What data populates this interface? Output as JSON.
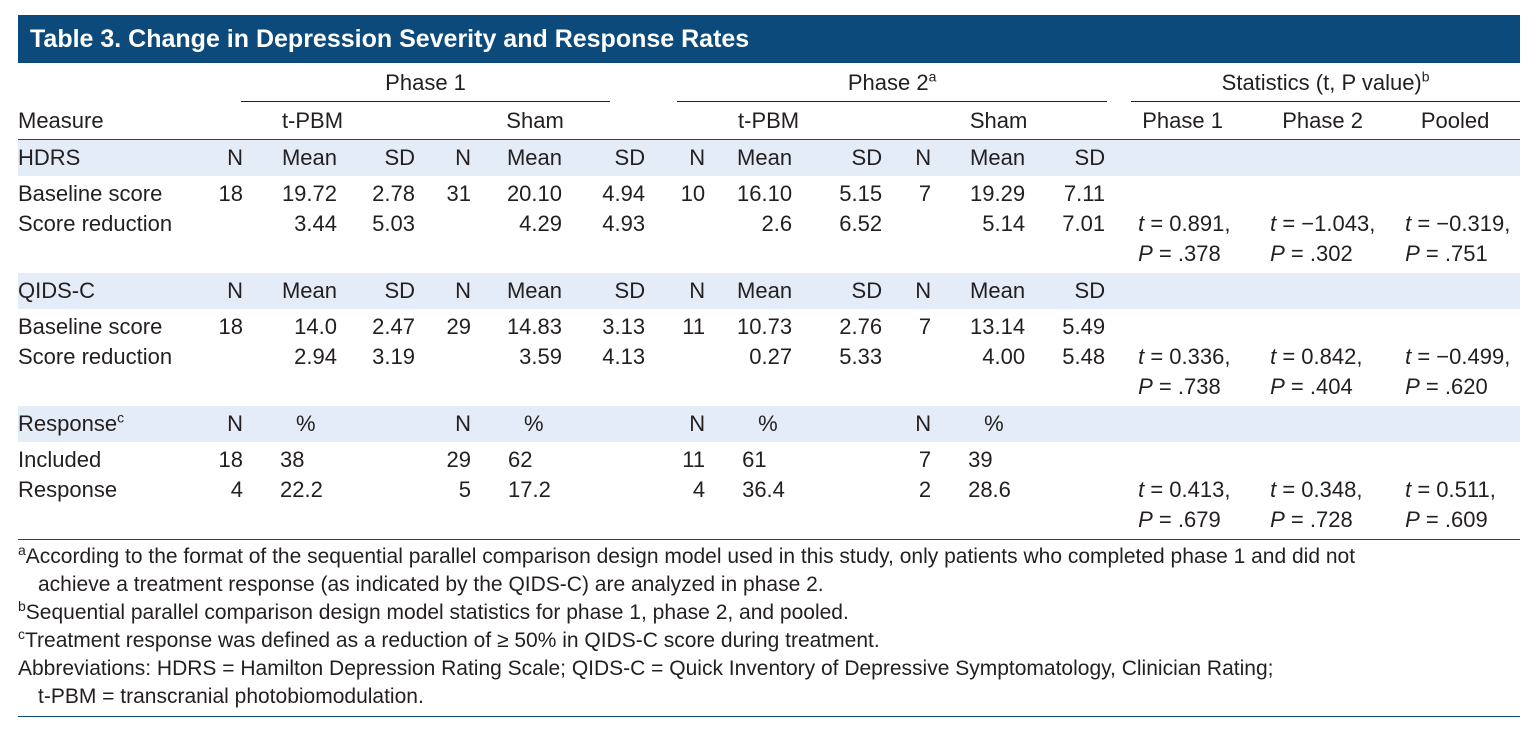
{
  "title": "Table 3. Change in Depression Severity and Response Rates",
  "header_groups": [
    {
      "label": "Phase 1"
    },
    {
      "label": "Phase 2",
      "note": "a"
    },
    {
      "label": "Statistics (t, P value)",
      "note": "b"
    }
  ],
  "column_heads": {
    "measure": "Measure",
    "groups": [
      "t-PBM",
      "Sham",
      "t-PBM",
      "Sham"
    ],
    "stats": [
      "Phase 1",
      "Phase 2",
      "Pooled"
    ]
  },
  "sections": [
    {
      "label": "HDRS",
      "subheads": [
        "N",
        "Mean",
        "SD",
        "N",
        "Mean",
        "SD",
        "N",
        "Mean",
        "SD",
        "N",
        "Mean",
        "SD"
      ],
      "rows": [
        {
          "label": "Baseline score",
          "cells": [
            "18",
            "19.72",
            "2.78",
            "31",
            "20.10",
            "4.94",
            "10",
            "16.10",
            "5.15",
            "7",
            "19.29",
            "7.11"
          ]
        },
        {
          "label": "Score reduction",
          "cells": [
            null,
            "3.44",
            "5.03",
            null,
            "4.29",
            "4.93",
            null,
            "2.6",
            "6.52",
            null,
            "5.14",
            "7.01"
          ],
          "stats": [
            [
              "t = 0.891,",
              "P = .378"
            ],
            [
              "t = −1.043,",
              "P = .302"
            ],
            [
              "t = −0.319,",
              "P = .751"
            ]
          ]
        }
      ]
    },
    {
      "label": "QIDS-C",
      "subheads": [
        "N",
        "Mean",
        "SD",
        "N",
        "Mean",
        "SD",
        "N",
        "Mean",
        "SD",
        "N",
        "Mean",
        "SD"
      ],
      "rows": [
        {
          "label": "Baseline score",
          "cells": [
            "18",
            "14.0",
            "2.47",
            "29",
            "14.83",
            "3.13",
            "11",
            "10.73",
            "2.76",
            "7",
            "13.14",
            "5.49"
          ]
        },
        {
          "label": "Score reduction",
          "cells": [
            null,
            "2.94",
            "3.19",
            null,
            "3.59",
            "4.13",
            null,
            "0.27",
            "5.33",
            null,
            "4.00",
            "5.48"
          ],
          "stats": [
            [
              "t = 0.336,",
              "P = .738"
            ],
            [
              "t = 0.842,",
              "P = .404"
            ],
            [
              "t = −0.499,",
              "P = .620"
            ]
          ]
        }
      ]
    },
    {
      "label": "Response",
      "note": "c",
      "subheads": [
        "N",
        "%",
        null,
        "N",
        "%",
        null,
        "N",
        "%",
        null,
        "N",
        "%",
        null
      ],
      "rows": [
        {
          "label": "Included",
          "cells": [
            "18",
            "38",
            null,
            "29",
            "62",
            null,
            "11",
            "61",
            null,
            "7",
            "39",
            null
          ]
        },
        {
          "label": "Response",
          "cells": [
            "4",
            "22.2",
            null,
            "5",
            "17.2",
            null,
            "4",
            "36.4",
            null,
            "2",
            "28.6",
            null
          ],
          "stats": [
            [
              "t = 0.413,",
              "P = .679"
            ],
            [
              "t = 0.348,",
              "P = .728"
            ],
            [
              "t = 0.511,",
              "P = .609"
            ]
          ]
        }
      ]
    }
  ],
  "footnotes": [
    {
      "note": "a",
      "lines": [
        "According to the format of the sequential parallel comparison design model used in this study, only patients who completed phase 1 and did not",
        "achieve a treatment response (as indicated by the QIDS-C) are analyzed in phase 2."
      ]
    },
    {
      "note": "b",
      "lines": [
        "Sequential parallel comparison design model statistics for phase 1, phase 2, and pooled."
      ]
    },
    {
      "note": "c",
      "lines": [
        "Treatment response was defined as a reduction of ≥ 50% in QIDS-C score during treatment."
      ]
    }
  ],
  "abbreviations": [
    "Abbreviations: HDRS = Hamilton Depression Rating Scale; QIDS-C = Quick Inventory of Depressive Symptomatology, Clinician Rating;",
    "t-PBM = transcranial photobiomodulation."
  ]
}
